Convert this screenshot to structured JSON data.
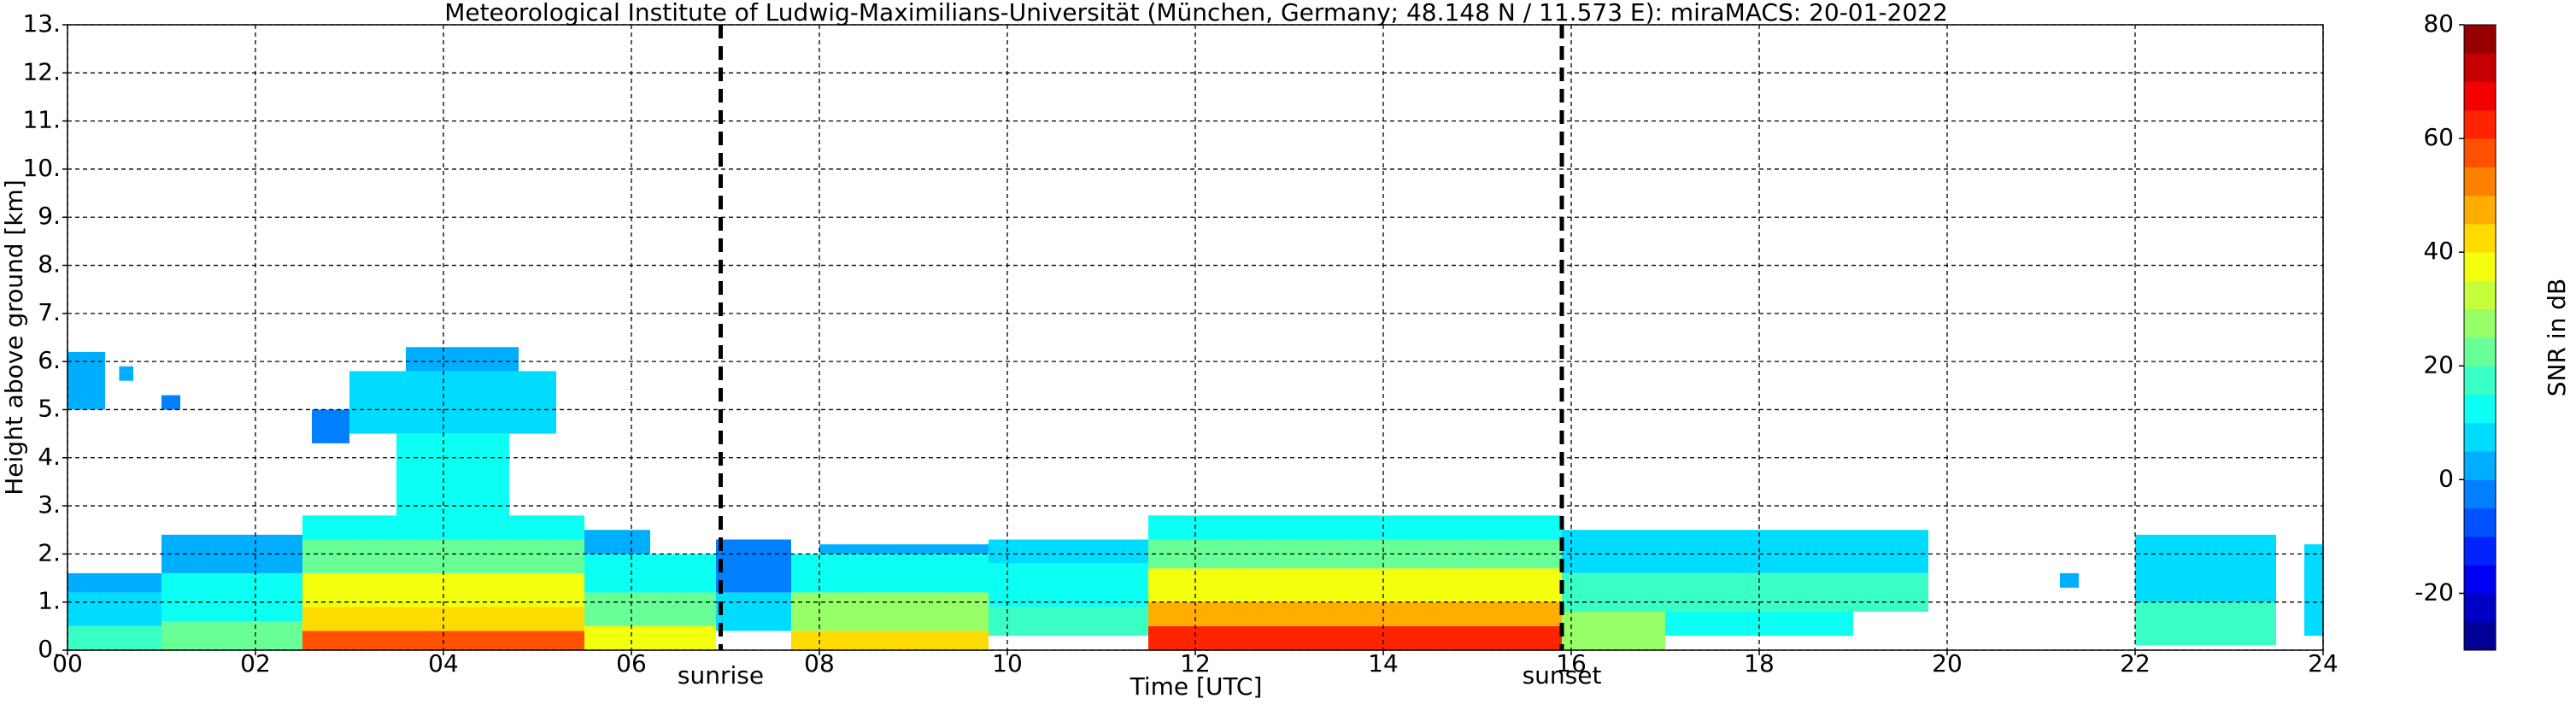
{
  "chart_data": {
    "type": "heatmap",
    "title": "Meteorological Institute of Ludwig-Maximilians-Universität (München, Germany; 48.148 N / 11.573 E):    miraMACS: 20-01-2022",
    "xlabel": "Time [UTC]",
    "ylabel": "Height above ground [km]",
    "colorbar_label": "SNR in dB",
    "xlim": [
      0,
      24
    ],
    "ylim": [
      0,
      13
    ],
    "xticks": [
      {
        "value": 0,
        "label": "00"
      },
      {
        "value": 2,
        "label": "02"
      },
      {
        "value": 4,
        "label": "04"
      },
      {
        "value": 6,
        "label": "06"
      },
      {
        "value": 8,
        "label": "08"
      },
      {
        "value": 10,
        "label": "10"
      },
      {
        "value": 12,
        "label": "12"
      },
      {
        "value": 14,
        "label": "14"
      },
      {
        "value": 16,
        "label": "16"
      },
      {
        "value": 18,
        "label": "18"
      },
      {
        "value": 20,
        "label": "20"
      },
      {
        "value": 22,
        "label": "22"
      },
      {
        "value": 24,
        "label": "24"
      }
    ],
    "yticks": [
      {
        "value": 0,
        "label": "0."
      },
      {
        "value": 1,
        "label": "1."
      },
      {
        "value": 2,
        "label": "2."
      },
      {
        "value": 3,
        "label": "3."
      },
      {
        "value": 4,
        "label": "4."
      },
      {
        "value": 5,
        "label": "5."
      },
      {
        "value": 6,
        "label": "6."
      },
      {
        "value": 7,
        "label": "7."
      },
      {
        "value": 8,
        "label": "8."
      },
      {
        "value": 9,
        "label": "9."
      },
      {
        "value": 10,
        "label": "10."
      },
      {
        "value": 11,
        "label": "11."
      },
      {
        "value": 12,
        "label": "12."
      },
      {
        "value": 13,
        "label": "13."
      }
    ],
    "clim": [
      -30,
      80
    ],
    "cticks": [
      -20,
      0,
      20,
      40,
      60,
      80
    ],
    "colormap": "jet",
    "grid": true,
    "markers": [
      {
        "name": "sunrise",
        "x": 6.95
      },
      {
        "name": "sunset",
        "x": 15.9
      }
    ],
    "cells": [
      {
        "t": [
          0,
          1
        ],
        "h": [
          0,
          0.5
        ],
        "snr": 15
      },
      {
        "t": [
          0,
          1
        ],
        "h": [
          0.5,
          1.2
        ],
        "snr": 8
      },
      {
        "t": [
          0,
          1
        ],
        "h": [
          1.2,
          1.6
        ],
        "snr": 0
      },
      {
        "t": [
          0,
          0.4
        ],
        "h": [
          5.0,
          6.2
        ],
        "snr": 2
      },
      {
        "t": [
          0.55,
          0.7
        ],
        "h": [
          5.6,
          5.9
        ],
        "snr": 0
      },
      {
        "t": [
          1.0,
          1.2
        ],
        "h": [
          5.0,
          5.3
        ],
        "snr": -5
      },
      {
        "t": [
          1,
          2.5
        ],
        "h": [
          0,
          0.6
        ],
        "snr": 22
      },
      {
        "t": [
          1,
          2.5
        ],
        "h": [
          0.6,
          1.6
        ],
        "snr": 12
      },
      {
        "t": [
          1,
          2.5
        ],
        "h": [
          1.6,
          2.4
        ],
        "snr": 3
      },
      {
        "t": [
          2.5,
          5.5
        ],
        "h": [
          0,
          0.4
        ],
        "snr": 58
      },
      {
        "t": [
          2.5,
          5.5
        ],
        "h": [
          0.4,
          0.9
        ],
        "snr": 45
      },
      {
        "t": [
          2.5,
          5.5
        ],
        "h": [
          0.9,
          1.6
        ],
        "snr": 35
      },
      {
        "t": [
          2.5,
          5.5
        ],
        "h": [
          1.6,
          2.3
        ],
        "snr": 22
      },
      {
        "t": [
          2.5,
          5.5
        ],
        "h": [
          2.3,
          2.8
        ],
        "snr": 10
      },
      {
        "t": [
          3.5,
          4.7
        ],
        "h": [
          2.8,
          4.5
        ],
        "snr": 12
      },
      {
        "t": [
          3.0,
          5.2
        ],
        "h": [
          4.5,
          5.8
        ],
        "snr": 5
      },
      {
        "t": [
          3.6,
          4.8
        ],
        "h": [
          5.8,
          6.3
        ],
        "snr": 0
      },
      {
        "t": [
          2.6,
          3.0
        ],
        "h": [
          4.3,
          5.0
        ],
        "snr": -2
      },
      {
        "t": [
          5.5,
          6.9
        ],
        "h": [
          0,
          0.5
        ],
        "snr": 35
      },
      {
        "t": [
          5.5,
          6.9
        ],
        "h": [
          0.5,
          1.2
        ],
        "snr": 22
      },
      {
        "t": [
          5.5,
          6.9
        ],
        "h": [
          1.2,
          2.0
        ],
        "snr": 12
      },
      {
        "t": [
          5.5,
          6.2
        ],
        "h": [
          2.0,
          2.5
        ],
        "snr": 3
      },
      {
        "t": [
          6.9,
          7.7
        ],
        "h": [
          0.4,
          1.2
        ],
        "snr": 5
      },
      {
        "t": [
          6.9,
          7.7
        ],
        "h": [
          1.2,
          2.3
        ],
        "snr": -2
      },
      {
        "t": [
          7.7,
          9.8
        ],
        "h": [
          0,
          0.4
        ],
        "snr": 45
      },
      {
        "t": [
          7.7,
          9.8
        ],
        "h": [
          0.4,
          1.2
        ],
        "snr": 28
      },
      {
        "t": [
          7.7,
          9.8
        ],
        "h": [
          1.2,
          2.0
        ],
        "snr": 12
      },
      {
        "t": [
          8.0,
          9.8
        ],
        "h": [
          2.0,
          2.2
        ],
        "snr": 2
      },
      {
        "t": [
          9.8,
          11.5
        ],
        "h": [
          0.3,
          0.9
        ],
        "snr": 18
      },
      {
        "t": [
          9.8,
          11.5
        ],
        "h": [
          0.9,
          1.8
        ],
        "snr": 12
      },
      {
        "t": [
          9.8,
          11.5
        ],
        "h": [
          1.8,
          2.3
        ],
        "snr": 5
      },
      {
        "t": [
          11.5,
          15.9
        ],
        "h": [
          0,
          0.5
        ],
        "snr": 60
      },
      {
        "t": [
          11.5,
          15.9
        ],
        "h": [
          0.5,
          1.0
        ],
        "snr": 48
      },
      {
        "t": [
          11.5,
          15.9
        ],
        "h": [
          1.0,
          1.7
        ],
        "snr": 35
      },
      {
        "t": [
          11.5,
          15.9
        ],
        "h": [
          1.7,
          2.3
        ],
        "snr": 22
      },
      {
        "t": [
          11.5,
          15.9
        ],
        "h": [
          2.3,
          2.8
        ],
        "snr": 10
      },
      {
        "t": [
          15.9,
          17.0
        ],
        "h": [
          0,
          0.8
        ],
        "snr": 25
      },
      {
        "t": [
          17.0,
          19.0
        ],
        "h": [
          0.3,
          0.8
        ],
        "snr": 12
      },
      {
        "t": [
          15.9,
          19.8
        ],
        "h": [
          0.8,
          1.6
        ],
        "snr": 15
      },
      {
        "t": [
          15.9,
          19.8
        ],
        "h": [
          1.6,
          2.5
        ],
        "snr": 5
      },
      {
        "t": [
          21.2,
          21.4
        ],
        "h": [
          1.3,
          1.6
        ],
        "snr": 0
      },
      {
        "t": [
          22.0,
          23.5
        ],
        "h": [
          0.1,
          1.0
        ],
        "snr": 15
      },
      {
        "t": [
          22.0,
          23.5
        ],
        "h": [
          1.0,
          2.4
        ],
        "snr": 5
      },
      {
        "t": [
          23.8,
          24
        ],
        "h": [
          0.3,
          2.2
        ],
        "snr": 8
      }
    ]
  }
}
